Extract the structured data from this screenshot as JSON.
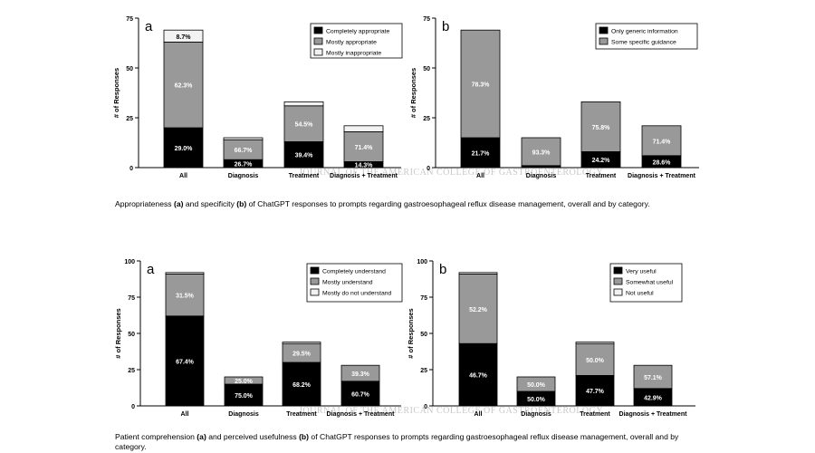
{
  "chart_data": [
    {
      "type": "bar",
      "panel_letter": "a",
      "stacked": true,
      "categories": [
        "All",
        "Diagnosis",
        "Treatment",
        "Diagnosis + Treatment"
      ],
      "ylabel": "# of Responses",
      "ylim": [
        0,
        75
      ],
      "yticks": [
        0,
        25,
        50,
        75
      ],
      "legend_position": "top-right",
      "totals": [
        69,
        15,
        33,
        21
      ],
      "series": [
        {
          "name": "Completely appropriate",
          "color": "#000000",
          "values": [
            20,
            4,
            13,
            3
          ],
          "labels": [
            "29.0%",
            "26.7%",
            "39.4%",
            "14.3%"
          ]
        },
        {
          "name": "Mostly appropriate",
          "color": "#999999",
          "values": [
            43,
            10,
            18,
            15
          ],
          "labels": [
            "62.3%",
            "66.7%",
            "54.5%",
            "71.4%"
          ]
        },
        {
          "name": "Mostly inappropriate",
          "color": "#f2f2f2",
          "values": [
            6,
            1,
            2,
            3
          ],
          "labels": [
            "8.7%",
            "",
            "",
            ""
          ]
        }
      ]
    },
    {
      "type": "bar",
      "panel_letter": "b",
      "stacked": true,
      "categories": [
        "All",
        "Diagnosis",
        "Treatment",
        "Diagnosis + Treatment"
      ],
      "ylabel": "# of Responses",
      "ylim": [
        0,
        75
      ],
      "yticks": [
        0,
        25,
        50,
        75
      ],
      "legend_position": "top-right",
      "totals": [
        69,
        15,
        33,
        21
      ],
      "series": [
        {
          "name": "Only generic information",
          "color": "#000000",
          "values": [
            15,
            1,
            8,
            6
          ],
          "labels": [
            "21.7%",
            "",
            "24.2%",
            "28.6%"
          ]
        },
        {
          "name": "Some specific guidance",
          "color": "#999999",
          "values": [
            54,
            14,
            25,
            15
          ],
          "labels": [
            "78.3%",
            "93.3%",
            "75.8%",
            "71.4%"
          ]
        }
      ]
    },
    {
      "type": "bar",
      "panel_letter": "a",
      "stacked": true,
      "categories": [
        "All",
        "Diagnosis",
        "Treatment",
        "Diagnosis + Treatment"
      ],
      "ylabel": "# of Responses",
      "ylim": [
        0,
        100
      ],
      "yticks": [
        0,
        25,
        50,
        75,
        100
      ],
      "legend_position": "top-right",
      "totals": [
        92,
        20,
        44,
        28
      ],
      "series": [
        {
          "name": "Completely understand",
          "color": "#000000",
          "values": [
            62,
            15,
            30,
            17
          ],
          "labels": [
            "67.4%",
            "75.0%",
            "68.2%",
            "60.7%"
          ]
        },
        {
          "name": "Mostly understand",
          "color": "#999999",
          "values": [
            29,
            5,
            13,
            11
          ],
          "labels": [
            "31.5%",
            "25.0%",
            "29.5%",
            "39.3%"
          ]
        },
        {
          "name": "Mostly do not understand",
          "color": "#f2f2f2",
          "values": [
            1,
            0,
            1,
            0
          ],
          "labels": [
            "",
            "",
            "",
            ""
          ]
        }
      ]
    },
    {
      "type": "bar",
      "panel_letter": "b",
      "stacked": true,
      "categories": [
        "All",
        "Diagnosis",
        "Treatment",
        "Diagnosis + Treatment"
      ],
      "ylabel": "# of Responses",
      "ylim": [
        0,
        100
      ],
      "yticks": [
        0,
        25,
        50,
        75,
        100
      ],
      "legend_position": "top-right",
      "totals": [
        92,
        20,
        44,
        28
      ],
      "series": [
        {
          "name": "Very useful",
          "color": "#000000",
          "values": [
            43,
            10,
            21,
            12
          ],
          "labels": [
            "46.7%",
            "50.0%",
            "47.7%",
            "42.9%"
          ]
        },
        {
          "name": "Somewhat useful",
          "color": "#999999",
          "values": [
            48,
            10,
            22,
            16
          ],
          "labels": [
            "52.2%",
            "50.0%",
            "50.0%",
            "57.1%"
          ]
        },
        {
          "name": "Not useful",
          "color": "#f2f2f2",
          "values": [
            1,
            0,
            1,
            0
          ],
          "labels": [
            "",
            "",
            "",
            ""
          ]
        }
      ]
    }
  ],
  "captions": [
    {
      "parts": [
        {
          "text": "Appropriateness ",
          "bold": false
        },
        {
          "text": "(a)",
          "bold": true
        },
        {
          "text": " and specificity ",
          "bold": false
        },
        {
          "text": "(b)",
          "bold": true
        },
        {
          "text": " of ChatGPT responses to prompts regarding gastroesophageal reflux disease management, overall and by category.",
          "bold": false
        }
      ]
    },
    {
      "parts": [
        {
          "text": "Patient comprehension ",
          "bold": false
        },
        {
          "text": "(a)",
          "bold": true
        },
        {
          "text": " and perceived usefulness ",
          "bold": false
        },
        {
          "text": "(b)",
          "bold": true
        },
        {
          "text": " of ChatGPT responses to prompts regarding gastroesophageal reflux disease management, overall and by category.",
          "bold": false
        }
      ]
    }
  ],
  "watermark": "JOURNAL OF THE AMERICAN COLLEGE OF GASTROENTEROLOGY"
}
